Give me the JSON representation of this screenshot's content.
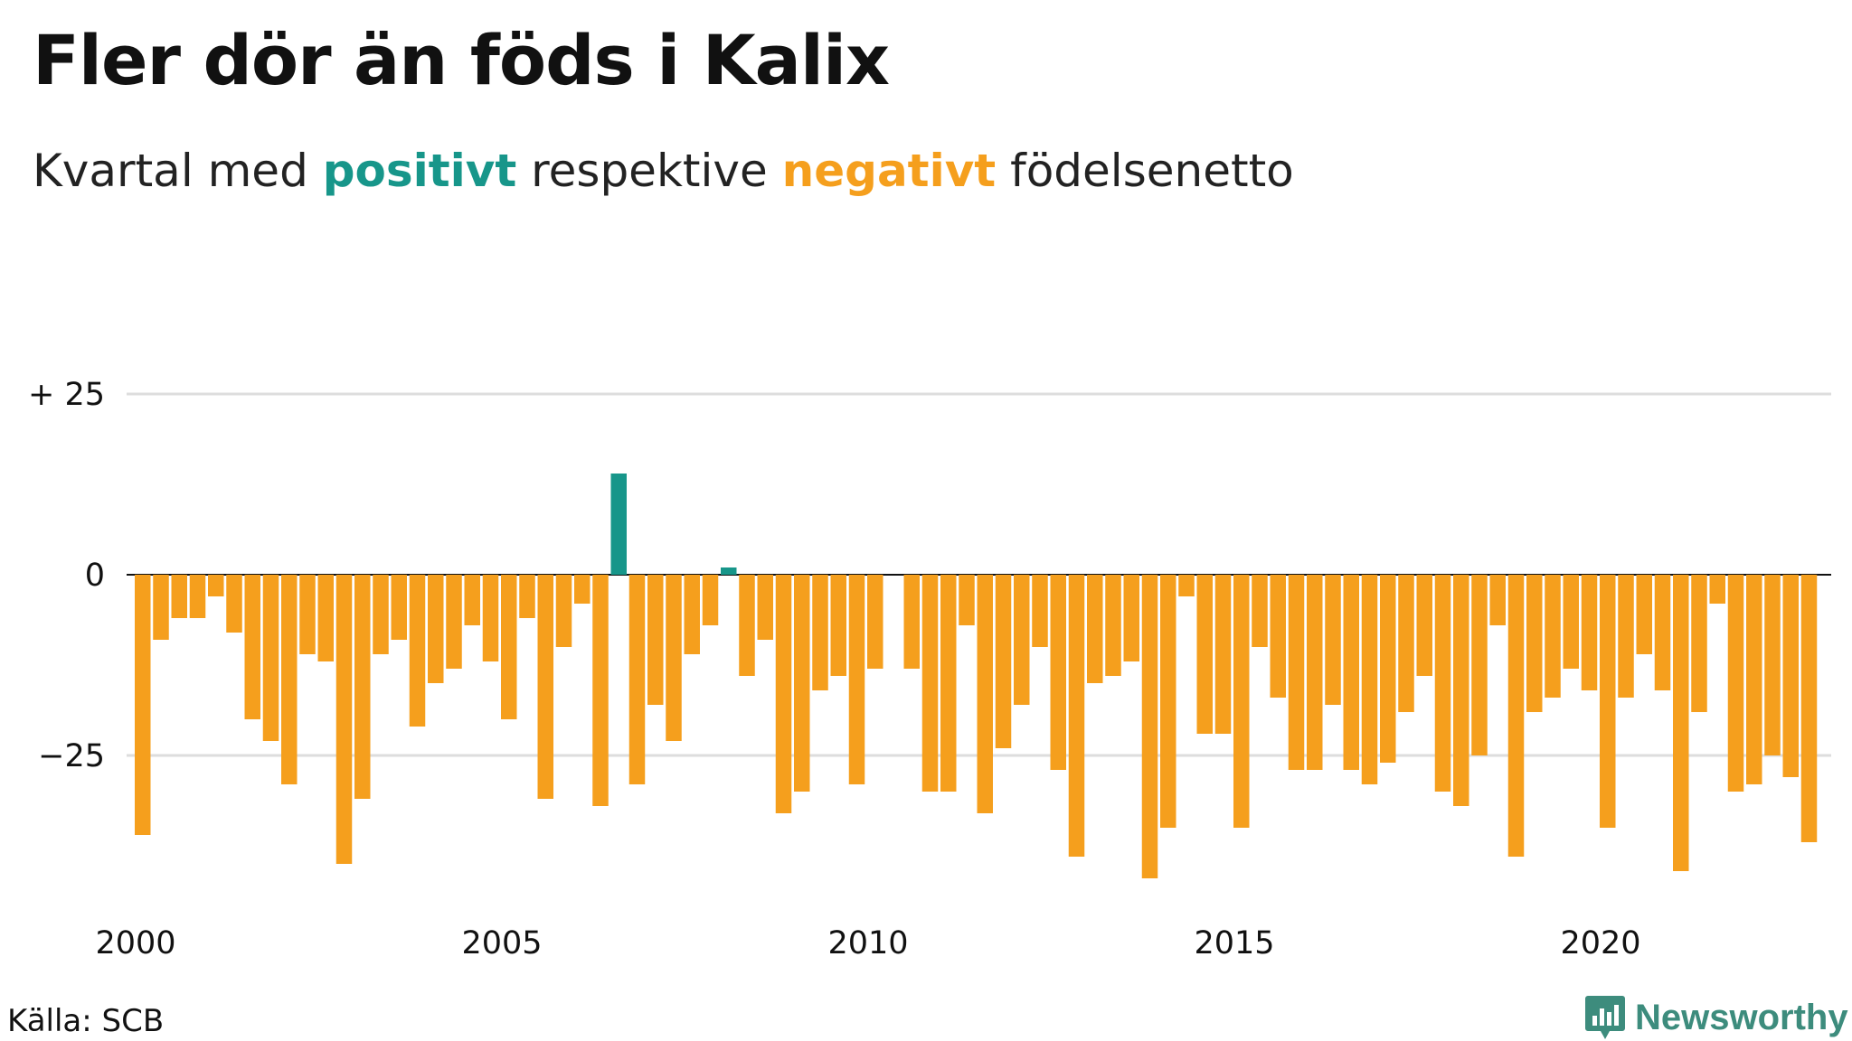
{
  "title": "Fler dör än föds i Kalix",
  "subtitle": {
    "prefix": "Kvartal med ",
    "positive_word": "positivt",
    "middle": " respektive ",
    "negative_word": "negativt",
    "suffix": " födelsenetto"
  },
  "colors": {
    "positive": "#17968a",
    "negative": "#f59f1d",
    "gridline": "#dddddd",
    "zero_line": "#111111"
  },
  "source": "Källa: SCB",
  "logo": {
    "text": "Newsworthy",
    "icon": "bar-chart-icon"
  },
  "chart_data": {
    "type": "bar",
    "title": "Fler dör än föds i Kalix",
    "subtitle": "Kvartal med positivt respektive negativt födelsenetto",
    "xlabel": "",
    "ylabel": "",
    "ylim": [
      -44,
      44
    ],
    "yticks": [
      25,
      0,
      -25
    ],
    "ytick_labels": [
      "+ 25",
      "0",
      "−25"
    ],
    "xticks": [
      2000,
      2005,
      2010,
      2015,
      2020
    ],
    "xtick_labels": [
      "2000",
      "2005",
      "2010",
      "2015",
      "2020"
    ],
    "x_start": 2000,
    "period": "quarter",
    "grid": true,
    "legend": "none",
    "values": [
      -36,
      -9,
      -6,
      -6,
      -3,
      -8,
      -20,
      -23,
      -29,
      -11,
      -12,
      -40,
      -31,
      -11,
      -9,
      -21,
      -15,
      -13,
      -7,
      -12,
      -20,
      -6,
      -31,
      -10,
      -4,
      -32,
      14,
      -29,
      -18,
      -23,
      -11,
      -7,
      1,
      -14,
      -9,
      -33,
      -30,
      -16,
      -14,
      -29,
      -13,
      0,
      -13,
      -30,
      -30,
      -7,
      -33,
      -24,
      -18,
      -10,
      -27,
      -39,
      -15,
      -14,
      -12,
      -42,
      -35,
      -3,
      -22,
      -22,
      -35,
      -10,
      -17,
      -27,
      -27,
      -18,
      -27,
      -29,
      -26,
      -19,
      -14,
      -30,
      -32,
      -25,
      -7,
      -39,
      -19,
      -17,
      -13,
      -16,
      -35,
      -17,
      -11,
      -16,
      -41,
      -19,
      -4,
      -30,
      -29,
      -25,
      -28,
      -37
    ]
  }
}
